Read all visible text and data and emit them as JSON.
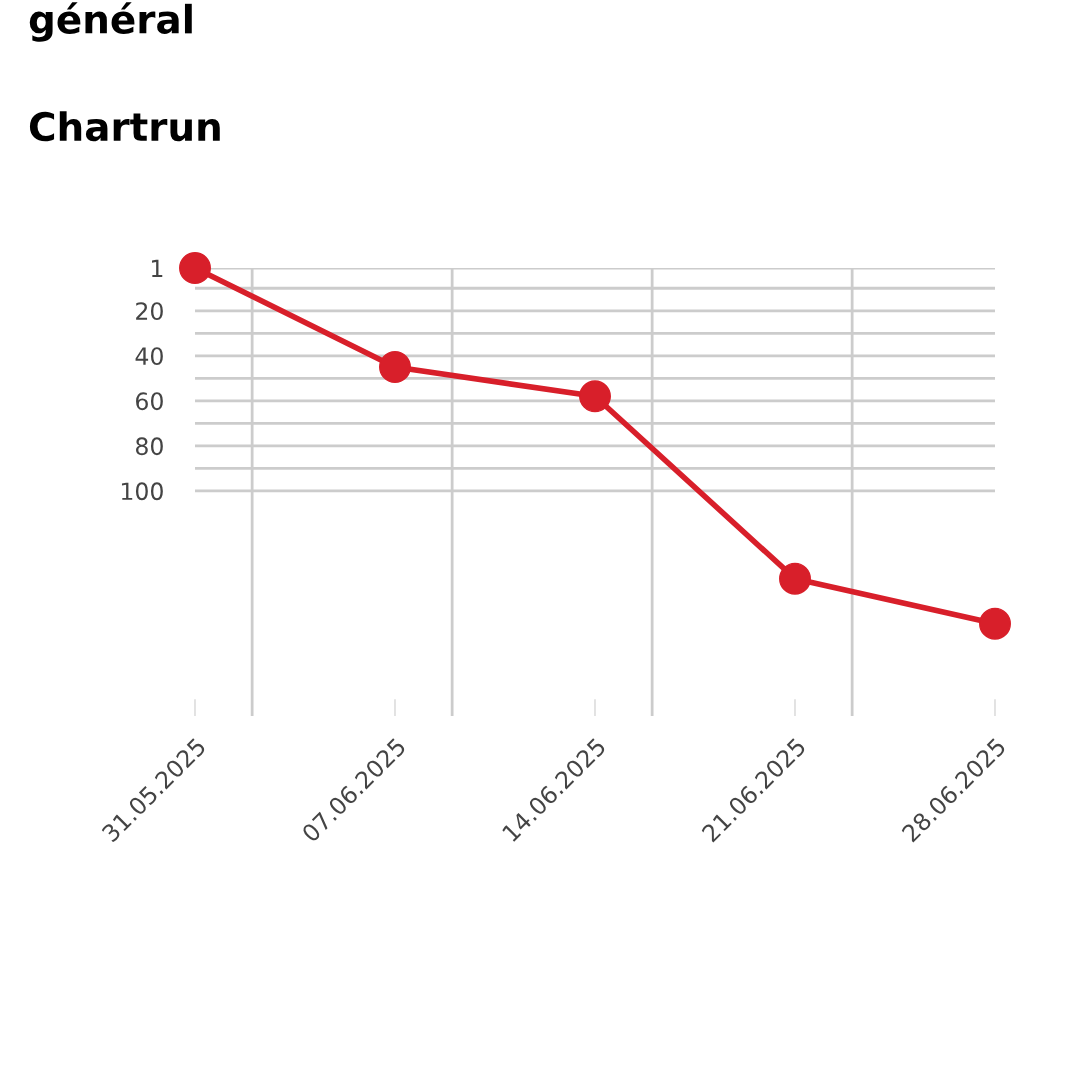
{
  "chart_data": {
    "type": "line",
    "title": "Chartrun",
    "annotations": [
      "général"
    ],
    "x": [
      "2025-05-31",
      "2025-06-07",
      "2025-06-14",
      "2025-06-21",
      "2025-06-28"
    ],
    "series": [
      {
        "color": "#d81f2a",
        "values": [
          1,
          45,
          58,
          139,
          159
        ]
      }
    ],
    "xlim": [
      "2025-05-31",
      "2025-06-28"
    ],
    "xticks": [
      {
        "value": "2025-05-31",
        "label": "31.05.2025"
      },
      {
        "value": "2025-06-02",
        "label": null
      },
      {
        "value": "2025-06-07",
        "label": "07.06.2025"
      },
      {
        "value": "2025-06-09",
        "label": null
      },
      {
        "value": "2025-06-14",
        "label": "14.06.2025"
      },
      {
        "value": "2025-06-16",
        "label": null
      },
      {
        "value": "2025-06-21",
        "label": "21.06.2025"
      },
      {
        "value": "2025-06-23",
        "label": null
      },
      {
        "value": "2025-06-28",
        "label": "28.06.2025"
      }
    ],
    "ylim": [
      200,
      1
    ],
    "yticks": [
      1,
      {
        "value": 10,
        "label": null
      },
      20,
      {
        "value": 30,
        "label": null
      },
      40,
      {
        "value": 50,
        "label": null
      },
      60,
      {
        "value": 70,
        "label": null
      },
      80,
      {
        "value": 90,
        "label": null
      },
      100
    ],
    "grid": true,
    "marker": "circle",
    "line_style": "solid",
    "legend": false
  }
}
